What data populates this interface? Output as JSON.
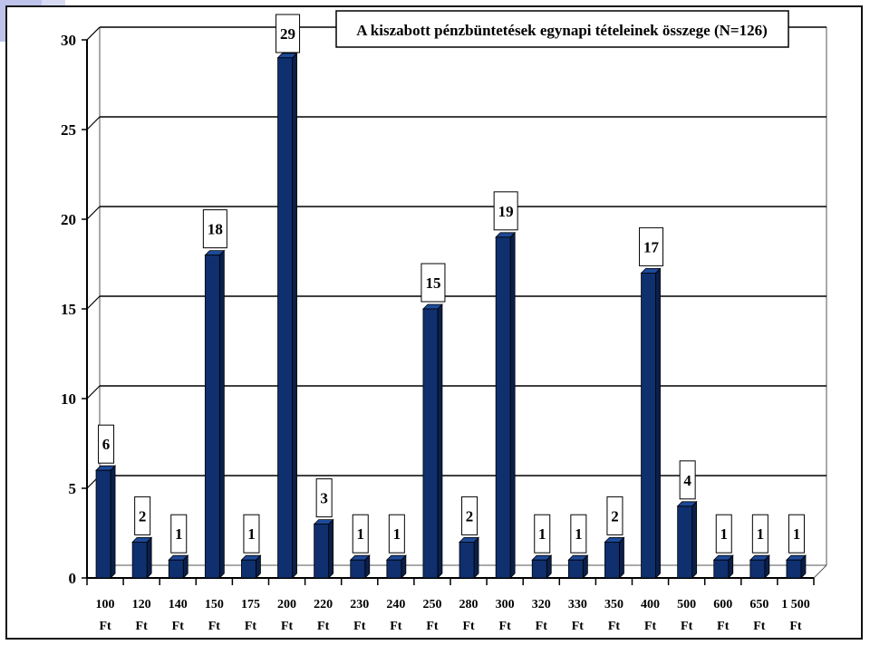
{
  "chart_data": {
    "type": "bar",
    "title": "A kiszabott pénzbüntetések egynapi tételeinek összege (N=126)",
    "categories": [
      [
        "100",
        "Ft"
      ],
      [
        "120",
        "Ft"
      ],
      [
        "140",
        "Ft"
      ],
      [
        "150",
        "Ft"
      ],
      [
        "175",
        "Ft"
      ],
      [
        "200",
        "Ft"
      ],
      [
        "220",
        "Ft"
      ],
      [
        "230",
        "Ft"
      ],
      [
        "240",
        "Ft"
      ],
      [
        "250",
        "Ft"
      ],
      [
        "280",
        "Ft"
      ],
      [
        "300",
        "Ft"
      ],
      [
        "320",
        "Ft"
      ],
      [
        "330",
        "Ft"
      ],
      [
        "350",
        "Ft"
      ],
      [
        "400",
        "Ft"
      ],
      [
        "500",
        "Ft"
      ],
      [
        "600",
        "Ft"
      ],
      [
        "650",
        "Ft"
      ],
      [
        "1 500",
        "Ft"
      ]
    ],
    "values": [
      6,
      2,
      1,
      18,
      1,
      29,
      3,
      1,
      1,
      15,
      2,
      19,
      1,
      1,
      2,
      17,
      4,
      1,
      1,
      1
    ],
    "ylim": [
      0,
      30
    ],
    "yticks": [
      0,
      5,
      10,
      15,
      20,
      25,
      30
    ],
    "grid": true,
    "bar_color": "#0f2f6e",
    "bar_side_color": "#0a1f4a",
    "bar_top_color": "#1e4a9a"
  }
}
